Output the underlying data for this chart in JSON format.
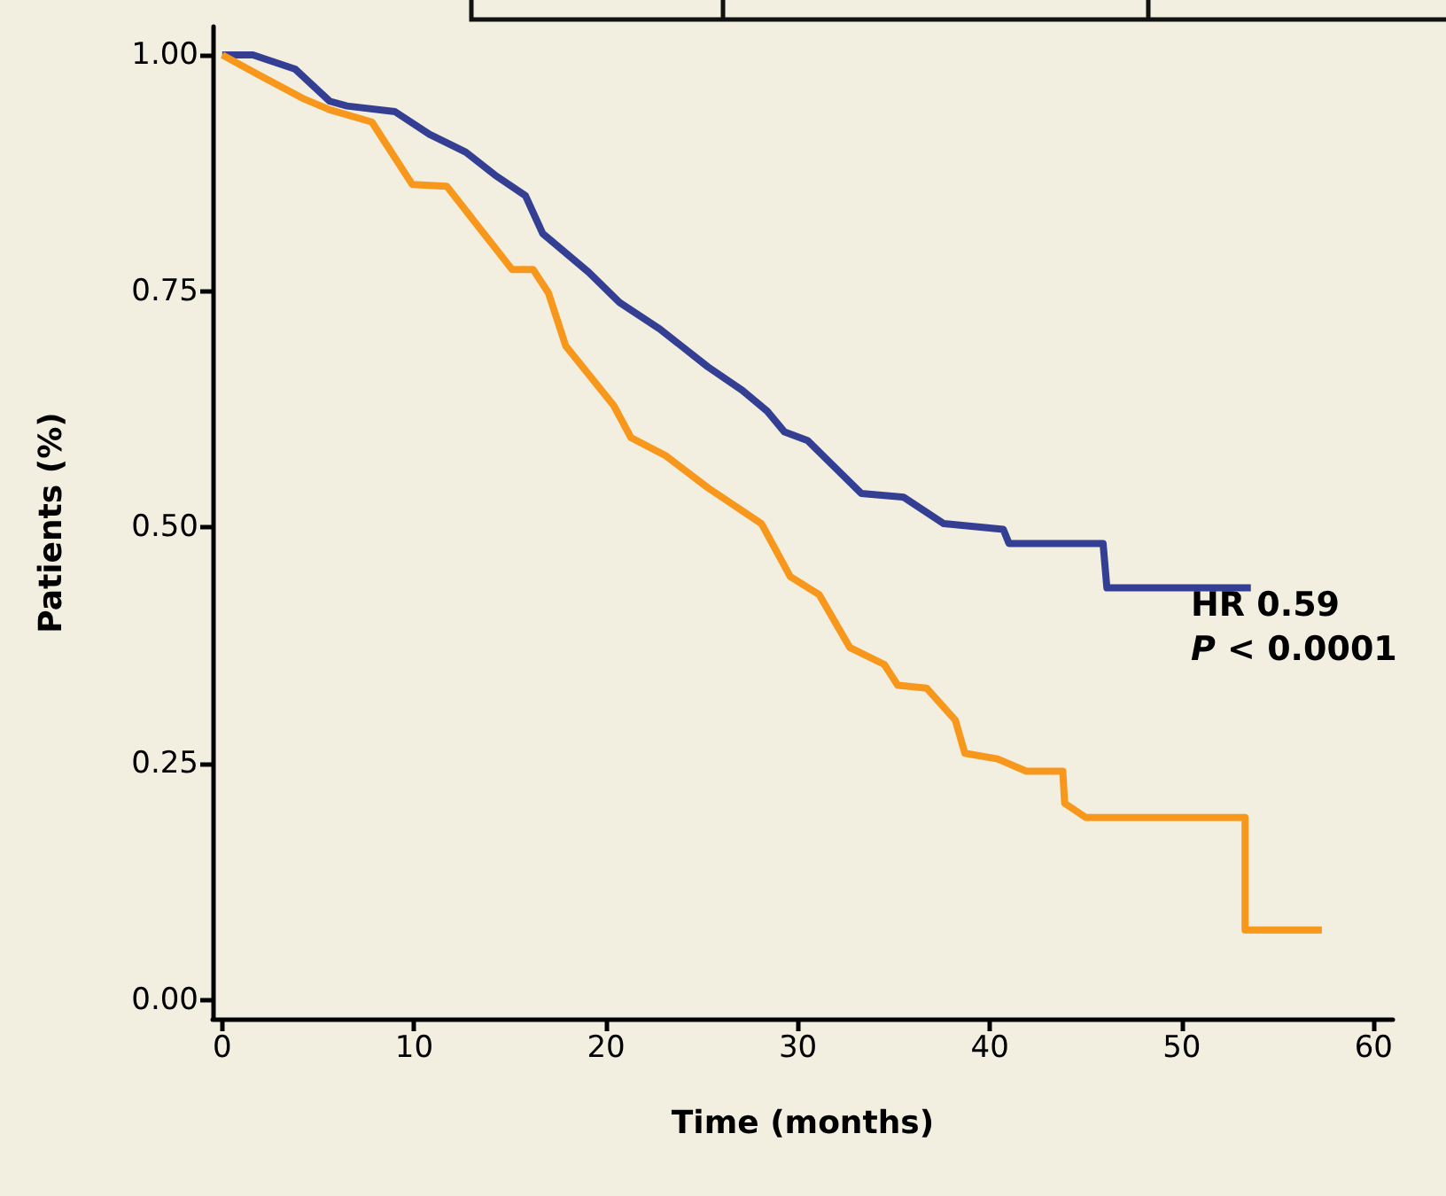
{
  "chart_data": {
    "type": "line",
    "xlabel": "Time (months)",
    "ylabel": "Patients (%)",
    "xlim": [
      -0.5,
      61
    ],
    "xticks": [
      0,
      10,
      20,
      30,
      40,
      50,
      60
    ],
    "ylim": [
      -0.02,
      1.03
    ],
    "yticks": [
      {
        "value": 0,
        "label": "0.00"
      },
      0.25,
      {
        "value": 0.5,
        "label": "0.50"
      },
      0.75,
      {
        "value": 1,
        "label": "1.00"
      }
    ],
    "grid": false,
    "marker": "none",
    "line_style": "solid",
    "annotations": [
      "HR 0.59",
      "P < 0.0001"
    ],
    "series": [
      {
        "color": "#343f94",
        "x": [
          0,
          1.6,
          3.8,
          5.6,
          6.5,
          9.0,
          10.8,
          12.7,
          14.2,
          15.8,
          16.7,
          19.1,
          20.7,
          22.8,
          25.3,
          27.1,
          28.4,
          29.3,
          30.5,
          33.3,
          35.5,
          37.6,
          40.7,
          41.0,
          45.9,
          46.1,
          53.6
        ],
        "values": [
          1,
          1,
          0.985,
          0.951,
          0.946,
          0.94,
          0.916,
          0.897,
          0.873,
          0.851,
          0.811,
          0.77,
          0.738,
          0.71,
          0.67,
          0.645,
          0.623,
          0.601,
          0.592,
          0.536,
          0.532,
          0.504,
          0.498,
          0.483,
          0.483,
          0.436,
          0.436
        ]
      },
      {
        "color": "#f7981d",
        "x": [
          0,
          1.9,
          4.2,
          5.6,
          7.8,
          8.4,
          9.9,
          11.7,
          15.1,
          16.2,
          17.0,
          17.9,
          20.4,
          21.3,
          23.1,
          25.3,
          28.1,
          29.6,
          31.1,
          32.7,
          34.5,
          35.2,
          36.7,
          38.2,
          38.7,
          40.4,
          41.9,
          43.8,
          43.9,
          45.0,
          53.3,
          53.3,
          57.3
        ],
        "values": [
          1,
          0.979,
          0.954,
          0.942,
          0.929,
          0.91,
          0.863,
          0.861,
          0.773,
          0.773,
          0.748,
          0.692,
          0.629,
          0.595,
          0.576,
          0.542,
          0.504,
          0.448,
          0.429,
          0.373,
          0.355,
          0.333,
          0.33,
          0.296,
          0.261,
          0.255,
          0.242,
          0.242,
          0.208,
          0.193,
          0.193,
          0.074,
          0.074
        ]
      }
    ]
  }
}
